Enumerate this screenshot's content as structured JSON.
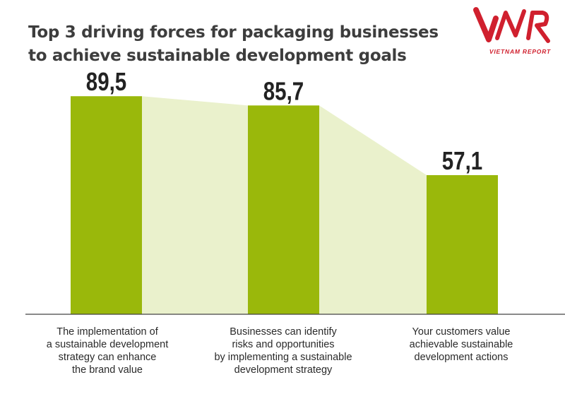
{
  "header": {
    "title_lines": [
      "Top 3 driving forces for packaging businesses",
      "to achieve sustainable development goals"
    ]
  },
  "logo": {
    "mark_text": "VNR",
    "subtitle": "VIETNAM REPORT",
    "color": "#d0202e"
  },
  "chart_data": {
    "type": "bar",
    "title": "Top 3 driving forces for packaging businesses to achieve sustainable development goals",
    "categories": [
      [
        "The implementation of",
        "a sustainable development",
        "strategy can enhance",
        "the brand value"
      ],
      [
        "Businesses can identify",
        "risks and opportunities",
        "by implementing a sustainable",
        "development strategy"
      ],
      [
        "Your customers value",
        "achievable sustainable",
        "development actions"
      ]
    ],
    "values": [
      89.5,
      85.7,
      57.1
    ],
    "value_labels": [
      "89,5",
      "85,7",
      "57,1"
    ],
    "xlabel": "",
    "ylabel": "",
    "ylim": [
      0,
      100
    ],
    "grid": false,
    "colors": {
      "bar": "#9ab80b",
      "connector": "#eaf1cc",
      "axis": "#444444",
      "label": "#222222"
    }
  }
}
